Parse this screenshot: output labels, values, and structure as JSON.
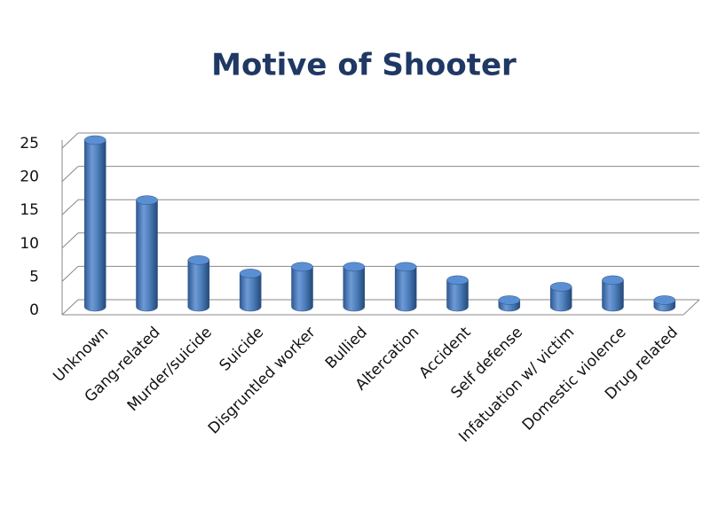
{
  "chart_data": {
    "type": "bar",
    "title": "Motive of Shooter",
    "categories": [
      "Unknown",
      "Gang-related",
      "Murder/suicide",
      "Suicide",
      "Disgruntled worker",
      "Bullied",
      "Altercation",
      "Accident",
      "Self defense",
      "Infatuation w/ victim",
      "Domestic violence",
      "Drug related"
    ],
    "values": [
      25,
      16,
      7,
      5,
      6,
      6,
      6,
      4,
      1,
      3,
      4,
      1
    ],
    "color": "#4f81bd",
    "ylim": [
      0,
      25
    ],
    "yticks": [
      0,
      5,
      10,
      15,
      20,
      25
    ],
    "grid": true
  }
}
